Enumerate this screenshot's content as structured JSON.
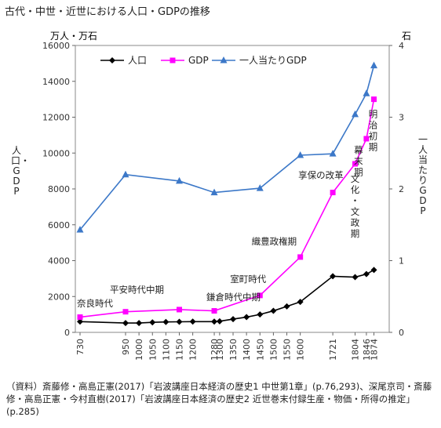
{
  "title": "古代・中世・近世における人口・GDPの推移",
  "source": "（資料）斎藤修・高島正憲(2017)「岩波講座日本経済の歴史1 中世第1章」(p.76,293)、深尾京司・斎藤修・高島正憲・今村直樹(2017)「岩波講座日本経済の歴史2 近世巻末付録生産・物価・所得の推定」(p.285)",
  "chart_data": {
    "type": "line",
    "categories": [
      "730",
      "950",
      "1000",
      "1050",
      "1100",
      "1150",
      "1200",
      "1280",
      "1300",
      "1350",
      "1400",
      "1450",
      "1500",
      "1550",
      "1600",
      "1721",
      "1804",
      "1846",
      "1874"
    ],
    "x_positions": [
      730,
      950,
      1000,
      1050,
      1100,
      1150,
      1200,
      1280,
      1300,
      1350,
      1400,
      1450,
      1500,
      1550,
      1600,
      1721,
      1804,
      1846,
      1874
    ],
    "left_axis": {
      "unit": "万人・万石",
      "label": "人口・GDP",
      "min": 0,
      "max": 16000,
      "ticks": [
        "0",
        "2000",
        "4000",
        "6000",
        "8000",
        "10000",
        "12000",
        "14000",
        "16000"
      ]
    },
    "right_axis": {
      "unit": "石",
      "label": "一人当たりGDP",
      "min": 0,
      "max": 4,
      "ticks": [
        "0",
        "1",
        "2",
        "3",
        "4"
      ]
    },
    "legend": {
      "placement": "top-left"
    },
    "series": [
      {
        "name": "人口",
        "axis": "left",
        "color": "#000000",
        "marker": "diamond",
        "points": [
          [
            730,
            600
          ],
          [
            950,
            520
          ],
          [
            1000,
            520
          ],
          [
            1050,
            560
          ],
          [
            1100,
            580
          ],
          [
            1150,
            590
          ],
          [
            1200,
            600
          ],
          [
            1280,
            600
          ],
          [
            1300,
            620
          ],
          [
            1350,
            740
          ],
          [
            1400,
            850
          ],
          [
            1450,
            1000
          ],
          [
            1500,
            1200
          ],
          [
            1550,
            1450
          ],
          [
            1600,
            1700
          ],
          [
            1721,
            3130
          ],
          [
            1804,
            3080
          ],
          [
            1846,
            3250
          ],
          [
            1874,
            3480
          ]
        ]
      },
      {
        "name": "GDP",
        "axis": "left",
        "color": "#ff00ff",
        "marker": "square",
        "points": [
          [
            730,
            850
          ],
          [
            950,
            1150
          ],
          [
            1150,
            1270
          ],
          [
            1280,
            1200
          ],
          [
            1450,
            2060
          ],
          [
            1600,
            4200
          ],
          [
            1721,
            7800
          ],
          [
            1804,
            9400
          ],
          [
            1846,
            10800
          ],
          [
            1874,
            13000
          ]
        ]
      },
      {
        "name": "一人当たりGDP",
        "axis": "right",
        "color": "#3c78c8",
        "marker": "triangle",
        "points": [
          [
            730,
            1.43
          ],
          [
            950,
            2.2
          ],
          [
            1150,
            2.11
          ],
          [
            1280,
            1.95
          ],
          [
            1450,
            2.01
          ],
          [
            1600,
            2.47
          ],
          [
            1721,
            2.49
          ],
          [
            1804,
            3.04
          ],
          [
            1846,
            3.33
          ],
          [
            1874,
            3.72
          ]
        ]
      }
    ],
    "annotations": [
      {
        "text": "奈良時代",
        "x": 730,
        "y": 1450,
        "vertical": false
      },
      {
        "text": "平安時代中期",
        "x": 950,
        "y": 2200,
        "vertical": false
      },
      {
        "text": "鎌倉時代中期",
        "x": 1280,
        "y": 1800,
        "vertical": false
      },
      {
        "text": "室町時代",
        "x": 1450,
        "y": 2800,
        "vertical": false
      },
      {
        "text": "織豊政権期",
        "x": 1600,
        "y": 4900,
        "vertical": false
      },
      {
        "text": "享保の改革",
        "x": 1721,
        "y": 8600,
        "vertical": false
      },
      {
        "text": "文化・文政期",
        "x": 1804,
        "y": 8400,
        "vertical": true
      },
      {
        "text": "幕末期",
        "x": 1846,
        "y": 10000,
        "vertical": true
      },
      {
        "text": "明治初期",
        "x": 1874,
        "y": 12000,
        "vertical": true
      }
    ]
  }
}
